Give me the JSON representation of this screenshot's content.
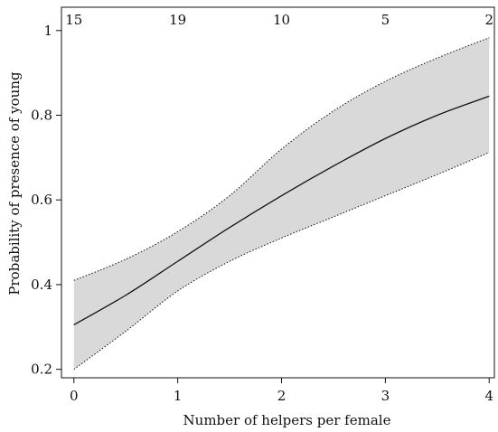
{
  "chart_data": {
    "type": "line",
    "title": "",
    "xlabel": "Number of helpers per female",
    "ylabel": "Probability of presence of young",
    "xlim": [
      -0.12,
      4.05
    ],
    "ylim": [
      0.18,
      1.055
    ],
    "x_ticks": [
      0,
      1,
      2,
      3,
      4
    ],
    "y_ticks": [
      0.2,
      0.4,
      0.6,
      0.8,
      1
    ],
    "y_tick_labels": [
      "0.2",
      "0.4",
      "0.6",
      "0.8",
      "1"
    ],
    "sample_sizes": {
      "x": [
        0,
        1,
        2,
        3,
        4
      ],
      "labels": [
        "15",
        "19",
        "10",
        "5",
        "2"
      ]
    },
    "grid": false,
    "series": [
      {
        "role": "fit",
        "x": [
          0,
          0.5,
          1,
          1.5,
          2,
          2.5,
          3,
          3.5,
          4
        ],
        "y": [
          0.305,
          0.375,
          0.455,
          0.535,
          0.61,
          0.68,
          0.745,
          0.8,
          0.845
        ],
        "color": "#111111"
      },
      {
        "role": "ci-upper",
        "x": [
          0,
          0.5,
          1,
          1.5,
          2,
          2.5,
          3,
          3.5,
          4
        ],
        "y": [
          0.41,
          0.46,
          0.525,
          0.61,
          0.72,
          0.81,
          0.88,
          0.935,
          0.983
        ],
        "color": "#111111"
      },
      {
        "role": "ci-lower",
        "x": [
          0,
          0.5,
          1,
          1.5,
          2,
          2.5,
          3,
          3.5,
          4
        ],
        "y": [
          0.2,
          0.29,
          0.385,
          0.455,
          0.51,
          0.56,
          0.61,
          0.66,
          0.712
        ],
        "color": "#111111"
      }
    ],
    "band_color": "#d9d9d9"
  }
}
